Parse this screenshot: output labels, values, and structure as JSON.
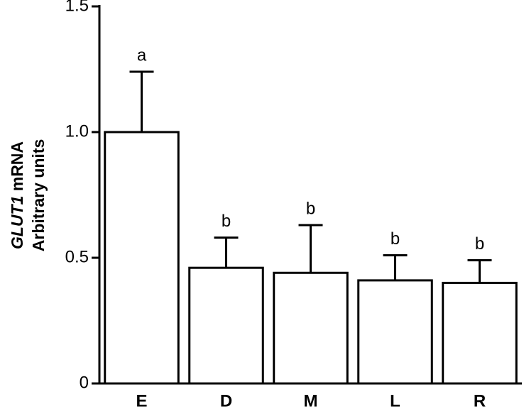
{
  "chart_data": {
    "type": "bar",
    "ylabel": {
      "gene": "GLUT1",
      "unit": "mRNA",
      "line2": "Arbitrary units"
    },
    "categories": [
      "E",
      "D",
      "M",
      "L",
      "R"
    ],
    "values": [
      1.0,
      0.46,
      0.44,
      0.41,
      0.4
    ],
    "errors": [
      0.24,
      0.12,
      0.19,
      0.1,
      0.09
    ],
    "letters": [
      "a",
      "b",
      "b",
      "b",
      "b"
    ],
    "color": "#ffffff",
    "ylim": [
      0,
      1.5
    ],
    "yticks": [
      0,
      0.5,
      {
        "value": 1,
        "label": "1.0"
      },
      1.5
    ]
  }
}
